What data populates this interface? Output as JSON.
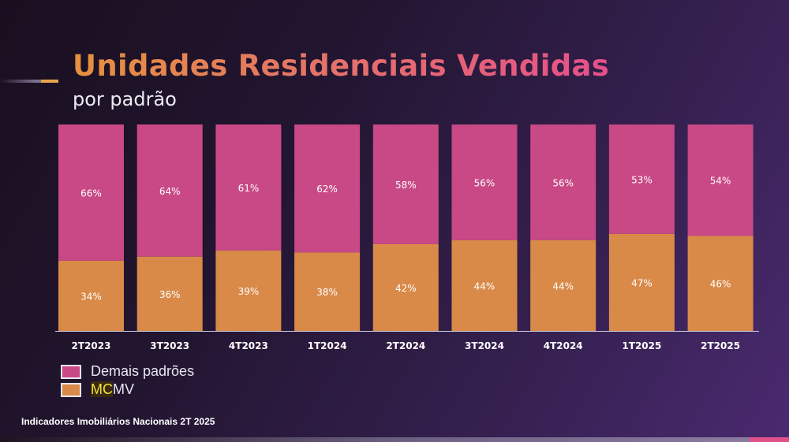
{
  "header": {
    "title": "Unidades Residenciais Vendidas",
    "subtitle": "por padrão"
  },
  "footer": {
    "text": "Indicadores Imobiliários Nacionais  2T 2025"
  },
  "chart_data": {
    "type": "bar",
    "stacked": true,
    "categories": [
      "2T2023",
      "3T2023",
      "4T2023",
      "1T2024",
      "2T2024",
      "3T2024",
      "4T2024",
      "1T2025",
      "2T2025"
    ],
    "series": [
      {
        "name": "MCMV",
        "values": [
          34,
          36,
          39,
          38,
          42,
          44,
          44,
          47,
          46
        ],
        "color": "#d98a48"
      },
      {
        "name": "Demais padrões",
        "values": [
          66,
          64,
          61,
          62,
          58,
          56,
          56,
          53,
          54
        ],
        "color": "#c84985"
      }
    ],
    "ylim": [
      0,
      100
    ],
    "unit": "%",
    "grid": false,
    "legend": "bottom-left"
  }
}
